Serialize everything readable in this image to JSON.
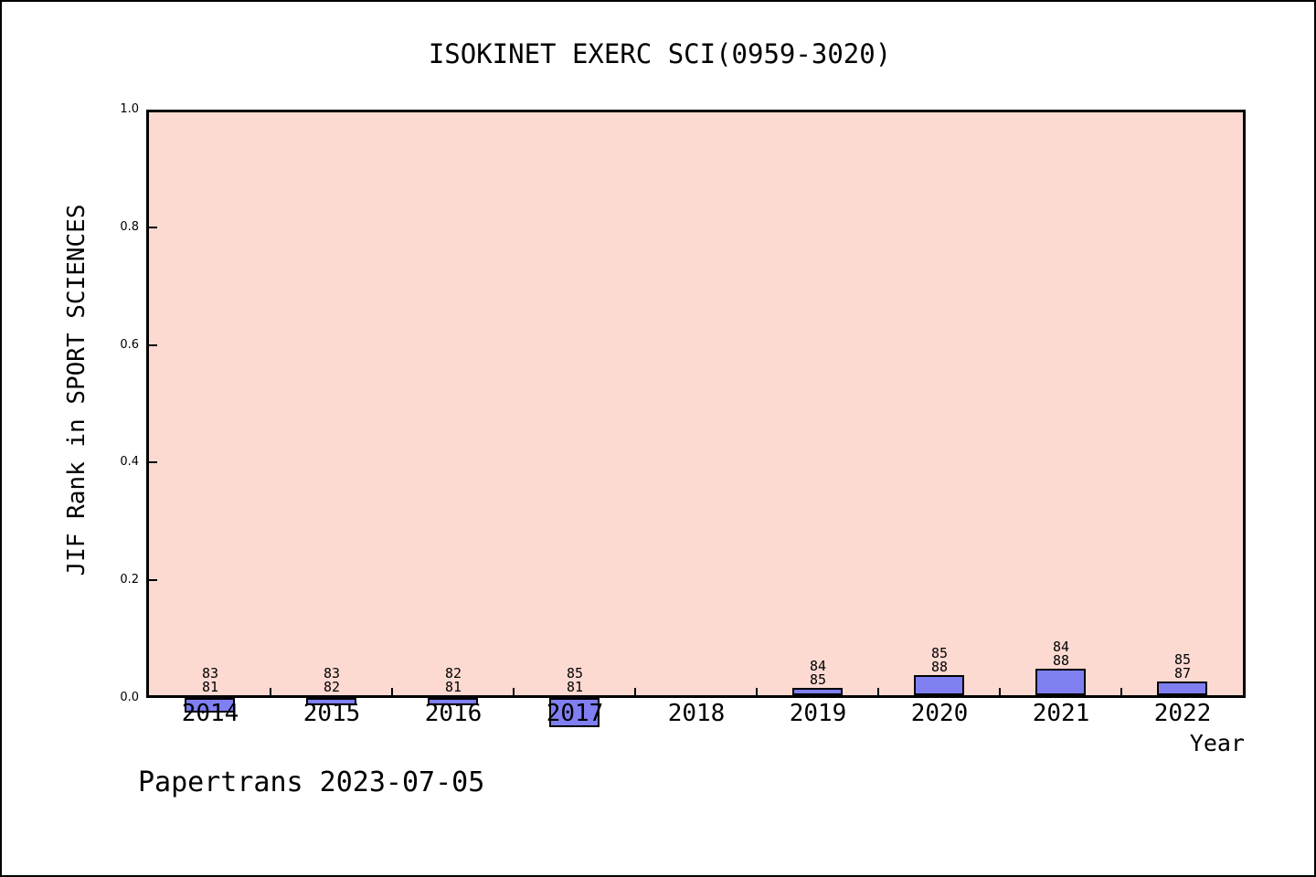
{
  "footer": {
    "text": "Papertrans 2023-07-05"
  },
  "chart_data": {
    "type": "bar",
    "title": "ISOKINET EXERC SCI(0959-3020)",
    "xlabel": "Year",
    "ylabel": "JIF Rank in SPORT SCIENCES",
    "ylim": [
      0.0,
      1.0
    ],
    "yticks": [
      "0.0",
      "0.2",
      "0.4",
      "0.6",
      "0.8",
      "1.0"
    ],
    "grid": "off",
    "legend": "none",
    "plot_background_color": "#fcdad2",
    "bar_fill_color": "#7f7ff2",
    "bar_edge_color": "#000000",
    "categories": [
      "2014",
      "2015",
      "2016",
      "2017",
      "2018",
      "2019",
      "2020",
      "2021",
      "2022"
    ],
    "bars": [
      {
        "year": "2014",
        "label_top": "83",
        "label_bottom": "81",
        "value": -0.0247
      },
      {
        "year": "2015",
        "label_top": "83",
        "label_bottom": "82",
        "value": -0.0122
      },
      {
        "year": "2016",
        "label_top": "82",
        "label_bottom": "81",
        "value": -0.0123
      },
      {
        "year": "2017",
        "label_top": "85",
        "label_bottom": "81",
        "value": -0.0494
      },
      {
        "year": "2018",
        "label_top": null,
        "label_bottom": null,
        "value": null
      },
      {
        "year": "2019",
        "label_top": "84",
        "label_bottom": "85",
        "value": 0.0118
      },
      {
        "year": "2020",
        "label_top": "85",
        "label_bottom": "88",
        "value": 0.0341
      },
      {
        "year": "2021",
        "label_top": "84",
        "label_bottom": "88",
        "value": 0.0455
      },
      {
        "year": "2022",
        "label_top": "85",
        "label_bottom": "87",
        "value": 0.023
      }
    ]
  }
}
